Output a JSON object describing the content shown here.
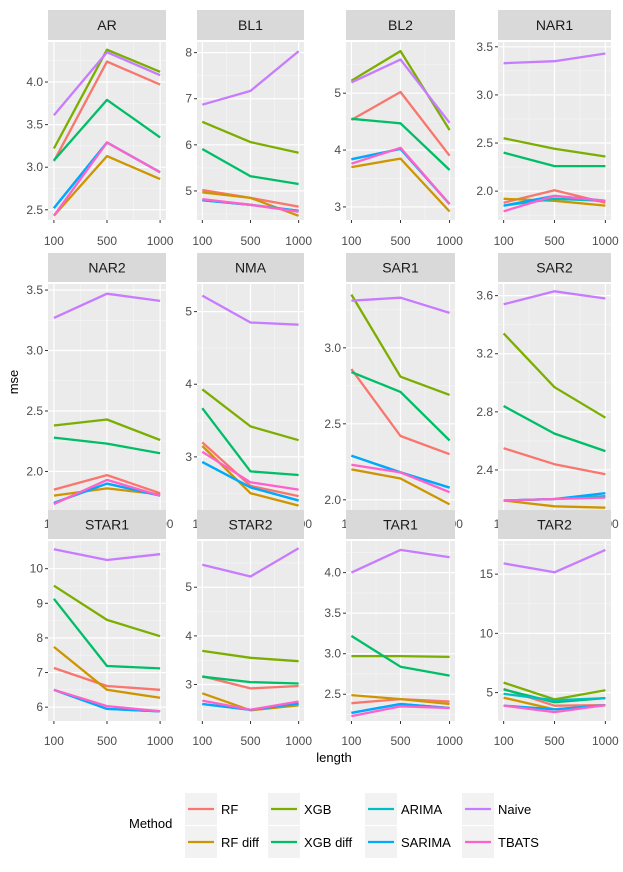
{
  "chart_data": {
    "type": "line",
    "facet_layout": "4 columns x 3 rows, free y scales",
    "xlabel": "length",
    "ylabel": "mse",
    "x": [
      "100",
      "500",
      "1000"
    ],
    "legend": {
      "title": "Method",
      "placement": "bottom",
      "entries": [
        "RF",
        "RF diff",
        "XGB",
        "XGB diff",
        "ARIMA",
        "SARIMA",
        "Naive",
        "TBATS"
      ]
    },
    "series_colors": {
      "RF": "#F8766D",
      "RF diff": "#CD9600",
      "XGB": "#7CAE00",
      "XGB diff": "#00BE67",
      "ARIMA": "#00BFC4",
      "SARIMA": "#00A9FF",
      "Naive": "#C77CFF",
      "TBATS": "#FF61CC"
    },
    "draw_order": [
      "RF",
      "RF diff",
      "XGB",
      "XGB diff",
      "ARIMA",
      "SARIMA",
      "Naive",
      "TBATS"
    ],
    "panels": [
      {
        "title": "AR",
        "ylim": [
          2.38,
          4.47
        ],
        "yticks": [
          2.5,
          3.0,
          3.5,
          4.0
        ],
        "ytick_labels": [
          "2.5",
          "3.0",
          "3.5",
          "4.0"
        ],
        "series": [
          {
            "name": "RF",
            "values": [
              3.07,
              4.24,
              3.97
            ]
          },
          {
            "name": "RF diff",
            "values": [
              2.43,
              3.13,
              2.86
            ]
          },
          {
            "name": "XGB",
            "values": [
              3.22,
              4.38,
              4.12
            ]
          },
          {
            "name": "XGB diff",
            "values": [
              3.08,
              3.79,
              3.35
            ]
          },
          {
            "name": "ARIMA",
            "values": [
              2.52,
              3.29,
              2.94
            ]
          },
          {
            "name": "SARIMA",
            "values": [
              2.52,
              3.29,
              2.94
            ]
          },
          {
            "name": "Naive",
            "values": [
              3.61,
              4.35,
              4.08
            ]
          },
          {
            "name": "TBATS",
            "values": [
              2.43,
              3.29,
              2.94
            ]
          }
        ]
      },
      {
        "title": "BL1",
        "ylim": [
          4.37,
          8.23
        ],
        "yticks": [
          5,
          6,
          7,
          8
        ],
        "ytick_labels": [
          "5",
          "6",
          "7",
          "8"
        ],
        "series": [
          {
            "name": "RF",
            "values": [
              5.02,
              4.85,
              4.66
            ]
          },
          {
            "name": "RF diff",
            "values": [
              4.97,
              4.85,
              4.46
            ]
          },
          {
            "name": "XGB",
            "values": [
              6.5,
              6.06,
              5.83
            ]
          },
          {
            "name": "XGB diff",
            "values": [
              5.91,
              5.32,
              5.15
            ]
          },
          {
            "name": "ARIMA",
            "values": [
              4.8,
              4.7,
              4.57
            ]
          },
          {
            "name": "SARIMA",
            "values": [
              4.8,
              4.7,
              4.57
            ]
          },
          {
            "name": "Naive",
            "values": [
              6.87,
              7.17,
              8.03
            ]
          },
          {
            "name": "TBATS",
            "values": [
              4.82,
              4.7,
              4.55
            ]
          }
        ]
      },
      {
        "title": "BL2",
        "ylim": [
          2.77,
          5.9
        ],
        "yticks": [
          3,
          4,
          5
        ],
        "ytick_labels": [
          "3",
          "4",
          "5"
        ],
        "series": [
          {
            "name": "RF",
            "values": [
              4.53,
              5.02,
              3.9
            ]
          },
          {
            "name": "RF diff",
            "values": [
              3.7,
              3.85,
              2.92
            ]
          },
          {
            "name": "XGB",
            "values": [
              5.22,
              5.74,
              4.35
            ]
          },
          {
            "name": "XGB diff",
            "values": [
              4.55,
              4.47,
              3.65
            ]
          },
          {
            "name": "ARIMA",
            "values": [
              3.84,
              4.02,
              3.05
            ]
          },
          {
            "name": "SARIMA",
            "values": [
              3.84,
              4.02,
              3.05
            ]
          },
          {
            "name": "Naive",
            "values": [
              5.19,
              5.59,
              4.48
            ]
          },
          {
            "name": "TBATS",
            "values": [
              3.76,
              4.04,
              3.05
            ]
          }
        ]
      },
      {
        "title": "NAR1",
        "ylim": [
          1.7,
          3.55
        ],
        "yticks": [
          2.0,
          2.5,
          3.0,
          3.5
        ],
        "ytick_labels": [
          "2.0",
          "2.5",
          "3.0",
          "3.5"
        ],
        "series": [
          {
            "name": "RF",
            "values": [
              1.88,
              2.01,
              1.88
            ]
          },
          {
            "name": "RF diff",
            "values": [
              1.92,
              1.9,
              1.85
            ]
          },
          {
            "name": "XGB",
            "values": [
              2.55,
              2.44,
              2.36
            ]
          },
          {
            "name": "XGB diff",
            "values": [
              2.4,
              2.26,
              2.26
            ]
          },
          {
            "name": "ARIMA",
            "values": [
              1.85,
              1.92,
              1.9
            ]
          },
          {
            "name": "SARIMA",
            "values": [
              1.85,
              1.95,
              1.9
            ]
          },
          {
            "name": "Naive",
            "values": [
              3.33,
              3.35,
              3.43
            ]
          },
          {
            "name": "TBATS",
            "values": [
              1.79,
              1.95,
              1.9
            ]
          }
        ]
      },
      {
        "title": "NAR2",
        "ylim": [
          1.64,
          3.55
        ],
        "yticks": [
          2.0,
          2.5,
          3.0,
          3.5
        ],
        "ytick_labels": [
          "2.0",
          "2.5",
          "3.0",
          "3.5"
        ],
        "series": [
          {
            "name": "RF",
            "values": [
              1.85,
              1.97,
              1.82
            ]
          },
          {
            "name": "RF diff",
            "values": [
              1.8,
              1.86,
              1.81
            ]
          },
          {
            "name": "XGB",
            "values": [
              2.38,
              2.43,
              2.26
            ]
          },
          {
            "name": "XGB diff",
            "values": [
              2.28,
              2.23,
              2.15
            ]
          },
          {
            "name": "ARIMA",
            "values": [
              1.74,
              1.9,
              1.8
            ]
          },
          {
            "name": "SARIMA",
            "values": [
              1.74,
              1.9,
              1.8
            ]
          },
          {
            "name": "Naive",
            "values": [
              3.27,
              3.47,
              3.41
            ]
          },
          {
            "name": "TBATS",
            "values": [
              1.73,
              1.93,
              1.8
            ]
          }
        ]
      },
      {
        "title": "NMA",
        "ylim": [
          2.2,
          5.38
        ],
        "yticks": [
          3,
          4,
          5
        ],
        "ytick_labels": [
          "3",
          "4",
          "5"
        ],
        "series": [
          {
            "name": "RF",
            "values": [
              3.2,
              2.6,
              2.46
            ]
          },
          {
            "name": "RF diff",
            "values": [
              3.15,
              2.5,
              2.33
            ]
          },
          {
            "name": "XGB",
            "values": [
              3.93,
              3.42,
              3.23
            ]
          },
          {
            "name": "XGB diff",
            "values": [
              3.67,
              2.8,
              2.75
            ]
          },
          {
            "name": "ARIMA",
            "values": [
              2.93,
              2.58,
              2.4
            ]
          },
          {
            "name": "SARIMA",
            "values": [
              2.93,
              2.58,
              2.4
            ]
          },
          {
            "name": "Naive",
            "values": [
              5.22,
              4.85,
              4.82
            ]
          },
          {
            "name": "TBATS",
            "values": [
              3.07,
              2.65,
              2.55
            ]
          }
        ]
      },
      {
        "title": "SAR1",
        "ylim": [
          1.9,
          3.42
        ],
        "yticks": [
          2.0,
          2.5,
          3.0
        ],
        "ytick_labels": [
          "2.0",
          "2.5",
          "3.0"
        ],
        "series": [
          {
            "name": "RF",
            "values": [
              2.86,
              2.42,
              2.3
            ]
          },
          {
            "name": "RF diff",
            "values": [
              2.2,
              2.14,
              1.97
            ]
          },
          {
            "name": "XGB",
            "values": [
              3.35,
              2.81,
              2.69
            ]
          },
          {
            "name": "XGB diff",
            "values": [
              2.84,
              2.71,
              2.39
            ]
          },
          {
            "name": "ARIMA",
            "values": [
              2.29,
              2.18,
              2.08
            ]
          },
          {
            "name": "SARIMA",
            "values": [
              2.29,
              2.18,
              2.08
            ]
          },
          {
            "name": "Naive",
            "values": [
              3.31,
              3.33,
              3.23
            ]
          },
          {
            "name": "TBATS",
            "values": [
              2.23,
              2.18,
              2.05
            ]
          }
        ]
      },
      {
        "title": "SAR2",
        "ylim": [
          2.09,
          3.68
        ],
        "yticks": [
          2.4,
          2.8,
          3.2,
          3.6
        ],
        "ytick_labels": [
          "2.4",
          "2.8",
          "3.2",
          "3.6"
        ],
        "series": [
          {
            "name": "RF",
            "values": [
              2.55,
              2.44,
              2.37
            ]
          },
          {
            "name": "RF diff",
            "values": [
              2.19,
              2.15,
              2.14
            ]
          },
          {
            "name": "XGB",
            "values": [
              3.34,
              2.97,
              2.76
            ]
          },
          {
            "name": "XGB diff",
            "values": [
              2.84,
              2.65,
              2.53
            ]
          },
          {
            "name": "ARIMA",
            "values": [
              2.19,
              2.2,
              2.22
            ]
          },
          {
            "name": "SARIMA",
            "values": [
              2.19,
              2.2,
              2.24
            ]
          },
          {
            "name": "Naive",
            "values": [
              3.54,
              3.63,
              3.58
            ]
          },
          {
            "name": "TBATS",
            "values": [
              2.19,
              2.2,
              2.21
            ]
          }
        ]
      },
      {
        "title": "STAR1",
        "ylim": [
          5.6,
          10.8
        ],
        "yticks": [
          6,
          7,
          8,
          9,
          10
        ],
        "ytick_labels": [
          "6",
          "7",
          "8",
          "9",
          "10"
        ],
        "series": [
          {
            "name": "RF",
            "values": [
              7.13,
              6.61,
              6.5
            ]
          },
          {
            "name": "RF diff",
            "values": [
              7.74,
              6.5,
              6.27
            ]
          },
          {
            "name": "XGB",
            "values": [
              9.51,
              8.52,
              8.05
            ]
          },
          {
            "name": "XGB diff",
            "values": [
              9.13,
              7.19,
              7.12
            ]
          },
          {
            "name": "ARIMA",
            "values": [
              6.5,
              5.95,
              5.88
            ]
          },
          {
            "name": "SARIMA",
            "values": [
              6.5,
              5.95,
              5.88
            ]
          },
          {
            "name": "Naive",
            "values": [
              10.56,
              10.25,
              10.42
            ]
          },
          {
            "name": "TBATS",
            "values": [
              6.5,
              6.03,
              5.88
            ]
          }
        ]
      },
      {
        "title": "STAR2",
        "ylim": [
          2.25,
          5.95
        ],
        "yticks": [
          3,
          4,
          5
        ],
        "ytick_labels": [
          "3",
          "4",
          "5"
        ],
        "series": [
          {
            "name": "RF",
            "values": [
              3.17,
              2.92,
              2.97
            ]
          },
          {
            "name": "RF diff",
            "values": [
              2.82,
              2.47,
              2.57
            ]
          },
          {
            "name": "XGB",
            "values": [
              3.69,
              3.55,
              3.48
            ]
          },
          {
            "name": "XGB diff",
            "values": [
              3.16,
              3.05,
              3.02
            ]
          },
          {
            "name": "ARIMA",
            "values": [
              2.6,
              2.48,
              2.61
            ]
          },
          {
            "name": "SARIMA",
            "values": [
              2.6,
              2.48,
              2.61
            ]
          },
          {
            "name": "Naive",
            "values": [
              5.46,
              5.22,
              5.8
            ]
          },
          {
            "name": "TBATS",
            "values": [
              2.67,
              2.48,
              2.65
            ]
          }
        ]
      },
      {
        "title": "TAR1",
        "ylim": [
          2.17,
          4.39
        ],
        "yticks": [
          2.5,
          3.0,
          3.5,
          4.0
        ],
        "ytick_labels": [
          "2.5",
          "3.0",
          "3.5",
          "4.0"
        ],
        "series": [
          {
            "name": "RF",
            "values": [
              2.39,
              2.44,
              2.41
            ]
          },
          {
            "name": "RF diff",
            "values": [
              2.49,
              2.44,
              2.38
            ]
          },
          {
            "name": "XGB",
            "values": [
              2.97,
              2.97,
              2.96
            ]
          },
          {
            "name": "XGB diff",
            "values": [
              3.22,
              2.84,
              2.73
            ]
          },
          {
            "name": "ARIMA",
            "values": [
              2.27,
              2.38,
              2.33
            ]
          },
          {
            "name": "SARIMA",
            "values": [
              2.27,
              2.38,
              2.33
            ]
          },
          {
            "name": "Naive",
            "values": [
              4.0,
              4.28,
              4.19
            ]
          },
          {
            "name": "TBATS",
            "values": [
              2.23,
              2.35,
              2.33
            ]
          }
        ]
      },
      {
        "title": "TAR2",
        "ylim": [
          2.6,
          17.8
        ],
        "yticks": [
          5,
          10,
          15
        ],
        "ytick_labels": [
          "5",
          "10",
          "15"
        ],
        "series": [
          {
            "name": "RF",
            "values": [
              5.3,
              3.89,
              3.94
            ]
          },
          {
            "name": "RF diff",
            "values": [
              4.57,
              3.58,
              3.92
            ]
          },
          {
            "name": "XGB",
            "values": [
              5.84,
              4.42,
              5.2
            ]
          },
          {
            "name": "XGB diff",
            "values": [
              5.27,
              4.19,
              4.53
            ]
          },
          {
            "name": "ARIMA",
            "values": [
              4.9,
              4.35,
              4.53
            ]
          },
          {
            "name": "SARIMA",
            "values": [
              3.9,
              3.58,
              3.94
            ]
          },
          {
            "name": "Naive",
            "values": [
              15.91,
              15.16,
              17.05
            ]
          },
          {
            "name": "TBATS",
            "values": [
              3.9,
              3.35,
              3.94
            ]
          }
        ]
      }
    ]
  }
}
